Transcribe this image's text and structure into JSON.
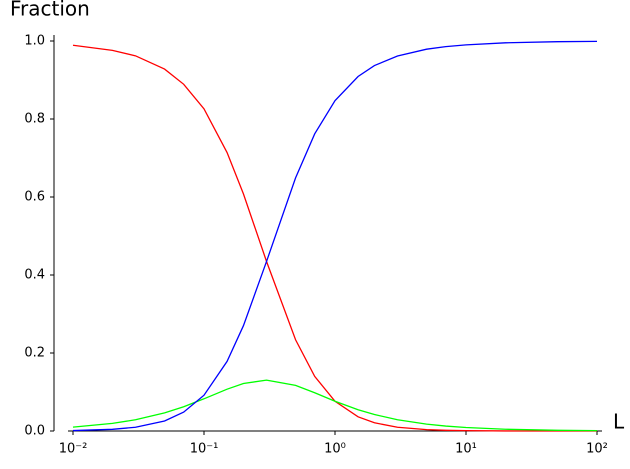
{
  "chart_data": {
    "type": "line",
    "ylabel": "Fraction",
    "xlabel": "L",
    "xscale": "log",
    "xlim": [
      0.01,
      100
    ],
    "ylim": [
      0,
      1
    ],
    "xticks": [
      {
        "value": 0.01,
        "label": "10⁻²"
      },
      {
        "value": 0.1,
        "label": "10⁻¹"
      },
      {
        "value": 1,
        "label": "10⁰"
      },
      {
        "value": 10,
        "label": "10¹"
      },
      {
        "value": 100,
        "label": "10²"
      }
    ],
    "yticks": [
      {
        "value": 0,
        "label": "0.0"
      },
      0.2,
      0.4,
      0.6,
      0.8,
      {
        "value": 1,
        "label": "1.0"
      }
    ],
    "x": [
      0.01,
      0.02,
      0.03,
      0.05,
      0.07,
      0.1,
      0.15,
      0.2,
      0.3,
      0.5,
      0.7,
      1,
      1.5,
      2,
      3,
      5,
      7,
      10,
      20,
      50,
      100
    ],
    "series": [
      {
        "color": "#ff0000",
        "values": [
          0.989,
          0.976,
          0.962,
          0.928,
          0.889,
          0.826,
          0.714,
          0.608,
          0.435,
          0.234,
          0.14,
          0.0763,
          0.0364,
          0.0211,
          0.0096,
          0.0035,
          0.0018,
          0.0009,
          0.0002,
          4e-05,
          1e-05
        ]
      },
      {
        "color": "#00ff00",
        "values": [
          0.0099,
          0.0195,
          0.0288,
          0.0464,
          0.0623,
          0.0826,
          0.1072,
          0.1217,
          0.1305,
          0.117,
          0.098,
          0.0763,
          0.0546,
          0.0422,
          0.0289,
          0.0176,
          0.0127,
          0.0089,
          0.0045,
          0.0018,
          0.0009
        ]
      },
      {
        "color": "#0000ff",
        "values": [
          0.0011,
          0.0043,
          0.0096,
          0.0257,
          0.0484,
          0.0917,
          0.1784,
          0.27,
          0.4345,
          0.649,
          0.762,
          0.847,
          0.909,
          0.937,
          0.9615,
          0.979,
          0.9855,
          0.99,
          0.9953,
          0.9982,
          0.9991
        ]
      }
    ]
  }
}
